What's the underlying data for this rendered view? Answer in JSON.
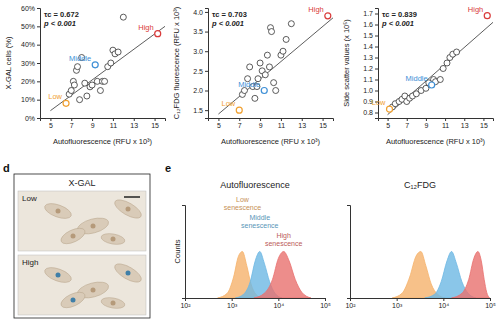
{
  "chart_data": [
    {
      "type": "scatter",
      "x_label": "Autofluorescence (RFU x 10³)",
      "y_label": "X-GAL cells (%)",
      "annotations": [
        "τc = 0.672",
        "p < 0.001"
      ],
      "xlim": [
        4,
        16
      ],
      "xticks": [
        5,
        7,
        9,
        11,
        13,
        15
      ],
      "ylim": [
        0,
        60
      ],
      "yticks": [
        {
          "value": 0,
          "label": "0%"
        },
        {
          "value": 10,
          "label": "10%"
        },
        {
          "value": 20,
          "label": "20%"
        },
        {
          "value": 30,
          "label": "30%"
        },
        {
          "value": 40,
          "label": "40%"
        },
        {
          "value": 50,
          "label": "50%"
        },
        {
          "value": 60,
          "label": "60%"
        }
      ],
      "trend_line": {
        "x": [
          5,
          16
        ],
        "y": [
          4,
          50
        ]
      },
      "series": [
        {
          "color": "#333333",
          "marker": "circle",
          "x": [
            6.8,
            7,
            7.2,
            7.3,
            7.5,
            7.6,
            7.8,
            8,
            8.3,
            8.5,
            8.8,
            9,
            9.5,
            9.8,
            10,
            10.2,
            10.5,
            10.8,
            11,
            11.2,
            11.5,
            12
          ],
          "values": [
            13,
            15,
            20,
            18,
            26,
            28,
            10,
            33,
            19,
            12,
            17,
            18,
            20,
            15,
            20,
            20,
            28,
            30,
            37,
            35,
            36,
            55
          ]
        },
        {
          "name": "Low",
          "color": "#f0a030",
          "marker": "circle",
          "x": [
            6.5
          ],
          "values": [
            8
          ]
        },
        {
          "name": "Middle",
          "color": "#3d8fd6",
          "marker": "circle",
          "x": [
            9.3
          ],
          "values": [
            29
          ]
        },
        {
          "name": "High",
          "color": "#d93a3a",
          "marker": "circle",
          "x": [
            15.3
          ],
          "values": [
            46
          ]
        }
      ]
    },
    {
      "type": "scatter",
      "x_label": "Autofluorescence (RFU x 10³)",
      "y_label": "C₁₂FDG fluorescence (RFU x 10³)",
      "annotations": [
        "τc = 0.703",
        "p < 0.001"
      ],
      "xlim": [
        4,
        16
      ],
      "xticks": [
        5,
        7,
        9,
        11,
        13,
        15
      ],
      "ylim": [
        1.3,
        4.1
      ],
      "yticks": [
        1.5,
        {
          "value": 2,
          "label": "2.0"
        },
        2.5,
        {
          "value": 3,
          "label": "3.0"
        },
        3.5,
        {
          "value": 4,
          "label": "4.0"
        }
      ],
      "trend_line": {
        "x": [
          5,
          16
        ],
        "y": [
          1.4,
          3.85
        ]
      },
      "series": [
        {
          "color": "#333333",
          "marker": "circle",
          "x": [
            7.3,
            7.5,
            7.8,
            8,
            8.3,
            8.5,
            8.7,
            8.8,
            9,
            9.2,
            9.5,
            9.7,
            9.9,
            10,
            10.1,
            10.3,
            10.5,
            11,
            11.2,
            11.5,
            12
          ],
          "values": [
            1.9,
            2.0,
            2.3,
            2.6,
            2.1,
            1.8,
            2.1,
            2.3,
            2.7,
            2.5,
            2.4,
            2.9,
            2.6,
            3.6,
            3.5,
            2.2,
            2.0,
            2.9,
            3.0,
            3.3,
            3.7
          ]
        },
        {
          "name": "Low",
          "color": "#f0a030",
          "marker": "circle",
          "x": [
            7
          ],
          "values": [
            1.5
          ]
        },
        {
          "name": "Middle",
          "color": "#3d8fd6",
          "marker": "circle",
          "x": [
            9.4
          ],
          "values": [
            2.0
          ]
        },
        {
          "name": "High",
          "color": "#d93a3a",
          "marker": "circle",
          "x": [
            15.5
          ],
          "values": [
            3.9
          ]
        }
      ]
    },
    {
      "type": "scatter",
      "x_label": "Autofluorescence (RFU x 10³)",
      "y_label": "Side scatter values (x 10⁵)",
      "annotations": [
        "τc = 0.839",
        "p < 0.001"
      ],
      "xlim": [
        4,
        16
      ],
      "xticks": [
        5,
        7,
        9,
        11,
        13,
        15
      ],
      "ylim": [
        0.75,
        1.75
      ],
      "yticks": [
        0.8,
        0.9,
        {
          "value": 1,
          "label": "1.0"
        },
        1.1,
        1.2,
        1.3,
        1.4,
        1.5,
        1.6,
        1.7
      ],
      "trend_line": {
        "x": [
          5,
          16
        ],
        "y": [
          0.78,
          1.62
        ]
      },
      "series": [
        {
          "color": "#333333",
          "marker": "circle",
          "x": [
            5.5,
            5.8,
            6.2,
            6.5,
            6.8,
            7,
            7.3,
            7.6,
            8,
            8.5,
            9,
            9.3,
            9.8,
            10,
            10.5,
            10.8,
            11.2,
            11.5,
            11.8,
            12.2
          ],
          "values": [
            0.85,
            0.88,
            0.9,
            0.92,
            0.95,
            0.9,
            0.93,
            0.95,
            0.97,
            1.0,
            1.02,
            1.07,
            1.1,
            1.08,
            1.1,
            1.2,
            1.25,
            1.3,
            1.33,
            1.35
          ]
        },
        {
          "name": "Low",
          "color": "#f0a030",
          "marker": "circle",
          "x": [
            5.2
          ],
          "values": [
            0.83
          ]
        },
        {
          "name": "Middle",
          "color": "#3d8fd6",
          "marker": "circle",
          "x": [
            9.6
          ],
          "values": [
            1.05
          ]
        },
        {
          "name": "High",
          "color": "#d93a3a",
          "marker": "circle",
          "x": [
            15.4
          ],
          "values": [
            1.68
          ]
        }
      ]
    },
    {
      "type": "area",
      "title": "Autofluorescence",
      "y_label": "Counts",
      "log": "x",
      "tick_labels": "x",
      "xlim": [
        100,
        100000
      ],
      "xticks": [
        {
          "value": 100,
          "label": "10²"
        },
        {
          "value": 1000,
          "label": "10³"
        },
        {
          "value": 10000,
          "label": "10⁴"
        },
        {
          "value": 100000,
          "label": "10⁵"
        }
      ],
      "ylim": [
        0,
        200
      ],
      "series": [
        {
          "name": "Low senescence",
          "color": "#f5b26b",
          "x": [
            500,
            800,
            1100,
            1400,
            1700,
            2100,
            2600,
            3300,
            4500
          ],
          "values": [
            0,
            10,
            45,
            90,
            100,
            70,
            30,
            8,
            0
          ]
        },
        {
          "name": "Middle senescence",
          "color": "#6db8e3",
          "x": [
            1200,
            1800,
            2500,
            3200,
            4000,
            5000,
            6500,
            8500,
            12000
          ],
          "values": [
            0,
            8,
            35,
            80,
            100,
            75,
            35,
            10,
            0
          ]
        },
        {
          "name": "High senescence",
          "color": "#e8706e",
          "x": [
            3000,
            5000,
            7500,
            10000,
            13000,
            17000,
            23000,
            32000,
            50000
          ],
          "values": [
            0,
            10,
            40,
            85,
            100,
            80,
            40,
            12,
            0
          ]
        }
      ]
    },
    {
      "type": "area",
      "title": "C₁₂FDG",
      "log": "x",
      "tick_labels": "x",
      "xlim": [
        100,
        100000
      ],
      "xticks": [
        {
          "value": 100,
          "label": "10²"
        },
        {
          "value": 1000,
          "label": "10³"
        },
        {
          "value": 10000,
          "label": "10⁴"
        },
        {
          "value": 100000,
          "label": "10⁵"
        }
      ],
      "ylim": [
        0,
        200
      ],
      "series": [
        {
          "color": "#f5b26b",
          "x": [
            800,
            1300,
            1900,
            2600,
            3300,
            4200,
            5500,
            7500,
            11000
          ],
          "values": [
            0,
            10,
            45,
            90,
            100,
            70,
            30,
            8,
            0
          ]
        },
        {
          "color": "#6db8e3",
          "x": [
            4000,
            6500,
            9000,
            12000,
            15000,
            19000,
            25000,
            34000,
            50000
          ],
          "values": [
            0,
            8,
            35,
            80,
            100,
            75,
            35,
            10,
            0
          ]
        },
        {
          "color": "#e8706e",
          "x": [
            15000,
            25000,
            35000,
            45000,
            55000,
            65000,
            75000,
            85000,
            98000
          ],
          "values": [
            0,
            10,
            40,
            85,
            100,
            80,
            40,
            12,
            0
          ]
        }
      ]
    }
  ],
  "panel_labels": [
    "d",
    "e"
  ],
  "image_panel": {
    "title": "X-GAL",
    "images": [
      "Low",
      "High"
    ]
  }
}
